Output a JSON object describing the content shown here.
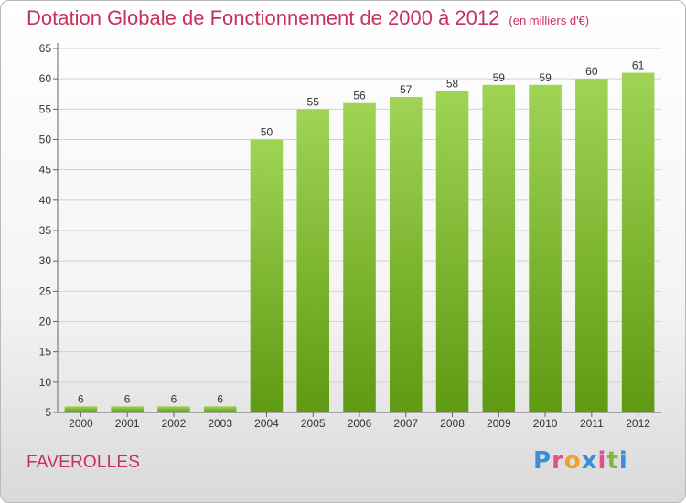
{
  "header": {
    "title": "Dotation Globale de Fonctionnement de 2000 à 2012",
    "unit": "(en milliers d'€)"
  },
  "footer": {
    "city": "FAVEROLLES",
    "logo_text": "Proxiti",
    "logo_colors": [
      "#3a8fd6",
      "#e0508c",
      "#f0a030",
      "#3a8fd6",
      "#e0508c",
      "#7fb83a",
      "#3a8fd6"
    ]
  },
  "colors": {
    "title": "#c8325a",
    "bar_top": "#9fd454",
    "bar_bottom": "#5f9a12",
    "grid": "#d2d2d2",
    "axis": "#666666"
  },
  "chart_data": {
    "type": "bar",
    "categories": [
      "2000",
      "2001",
      "2002",
      "2003",
      "2004",
      "2005",
      "2006",
      "2007",
      "2008",
      "2009",
      "2010",
      "2011",
      "2012"
    ],
    "values": [
      6,
      6,
      6,
      6,
      50,
      55,
      56,
      57,
      58,
      59,
      59,
      60,
      61
    ],
    "data_labels": [
      "6",
      "6",
      "6",
      "6",
      "50",
      "55",
      "56",
      "57",
      "58",
      "59",
      "59",
      "60",
      "61"
    ],
    "yticks": [
      "5",
      "10",
      "15",
      "20",
      "25",
      "30",
      "35",
      "40",
      "45",
      "50",
      "55",
      "60",
      "65"
    ],
    "ylim": [
      5,
      65
    ],
    "grid": true,
    "title": "Dotation Globale de Fonctionnement de 2000 à 2012",
    "xlabel": "",
    "ylabel": ""
  }
}
